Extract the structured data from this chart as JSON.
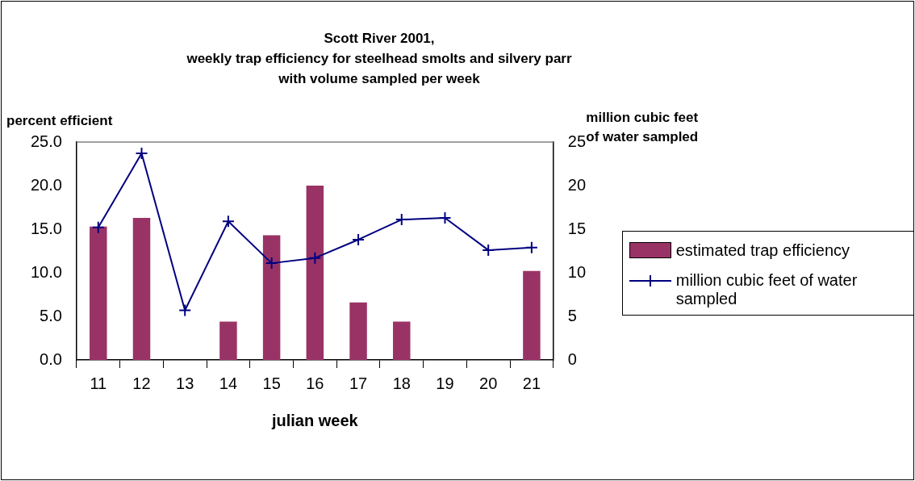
{
  "chart_data": {
    "type": "bar",
    "title": "Scott River 2001,\nweekly trap efficiency for steelhead smolts and silvery parr\nwith volume sampled per week",
    "xlabel": "julian week",
    "ylabel": "percent efficient",
    "y2label": "million cubic feet\nof water sampled",
    "categories": [
      "11",
      "12",
      "13",
      "14",
      "15",
      "16",
      "17",
      "18",
      "19",
      "20",
      "21"
    ],
    "series": [
      {
        "name": "estimated trap efficiency",
        "color": "#993366",
        "values": [
          15.3,
          16.3,
          null,
          4.4,
          14.3,
          20.0,
          6.6,
          4.4,
          null,
          null,
          10.2
        ]
      },
      {
        "name": "million cubic feet of water sampled",
        "type": "line",
        "axis": "y2",
        "color": "#000080",
        "marker": "cross",
        "values": [
          15.2,
          23.7,
          5.7,
          15.9,
          11.1,
          11.7,
          13.8,
          16.1,
          16.3,
          12.6,
          12.9
        ]
      }
    ],
    "ylim": [
      0,
      25
    ],
    "yticks": [
      {
        "value": 0,
        "label": "0.0"
      },
      {
        "value": 5,
        "label": "5.0"
      },
      {
        "value": 10,
        "label": "10.0"
      },
      {
        "value": 15,
        "label": "15.0"
      },
      {
        "value": 20,
        "label": "20.0"
      },
      {
        "value": 25,
        "label": "25.0"
      }
    ],
    "y2lim": [
      0,
      25
    ],
    "y2ticks": [
      0,
      5,
      10,
      15,
      20,
      25
    ],
    "grid": false,
    "legend": "right"
  }
}
